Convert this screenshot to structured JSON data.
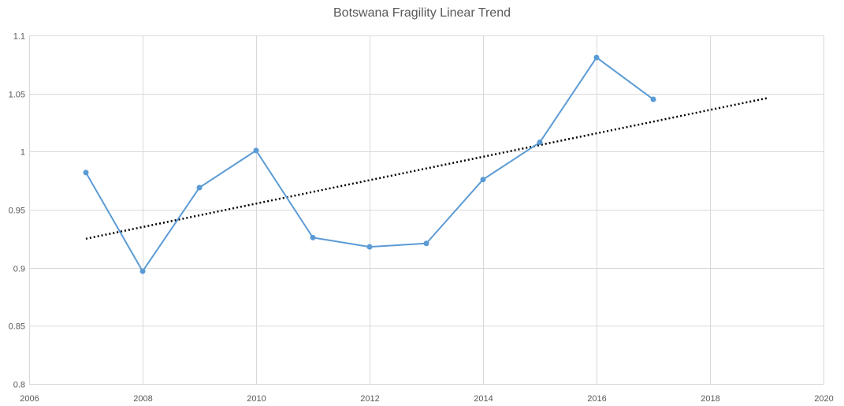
{
  "chart_data": {
    "type": "scatter",
    "title": "Botswana Fragility Linear Trend",
    "xlabel": "",
    "ylabel": "",
    "xlim": [
      2006,
      2020
    ],
    "ylim": [
      0.8,
      1.1
    ],
    "xticks": [
      2006,
      2008,
      2010,
      2012,
      2014,
      2016,
      2018,
      2020
    ],
    "yticks": [
      0.8,
      0.85,
      0.9,
      0.95,
      1,
      1.05,
      1.1
    ],
    "xtick_labels": [
      "2006",
      "2008",
      "2010",
      "2012",
      "2014",
      "2016",
      "2018",
      "2020"
    ],
    "ytick_labels": [
      "0.8",
      "0.85",
      "0.9",
      "0.95",
      "1",
      "1.05",
      "1.1"
    ],
    "grid": true,
    "legend": "none",
    "series": [
      {
        "type": "line-with-markers",
        "color": "#5b9bd5",
        "x": [
          2007,
          2008,
          2009,
          2010,
          2011,
          2012,
          2013,
          2014,
          2015,
          2016,
          2017
        ],
        "y": [
          0.982,
          0.897,
          0.969,
          1.001,
          0.926,
          0.918,
          0.921,
          0.976,
          1.008,
          1.081,
          1.045
        ]
      }
    ],
    "trendline": {
      "type": "linear",
      "style": "dotted",
      "color": "#000000",
      "x": [
        2007,
        2019
      ],
      "y": [
        0.925,
        1.046
      ]
    }
  }
}
